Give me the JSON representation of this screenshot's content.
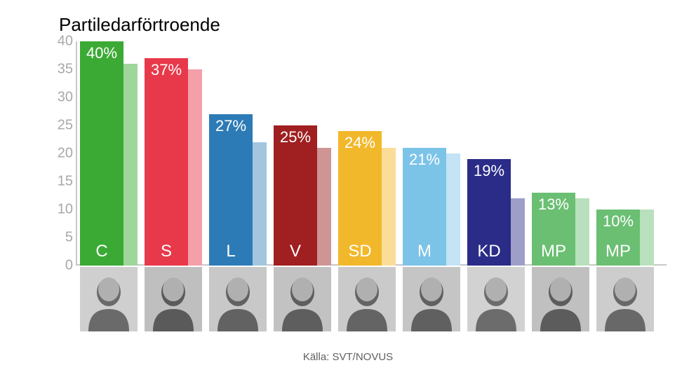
{
  "chart": {
    "type": "bar",
    "title": "Partiledarförtroende",
    "title_fontsize": 26,
    "title_color": "#000000",
    "background_color": "#ffffff",
    "axis_color": "#c8c8c8",
    "ylim": [
      0,
      40
    ],
    "ytick_step": 5,
    "yticks": [
      0,
      5,
      10,
      15,
      20,
      25,
      30,
      35,
      40
    ],
    "ytick_color": "#a8a8a8",
    "ytick_fontsize": 20,
    "value_label_color": "#ffffff",
    "value_label_fontsize": 22,
    "party_label_color": "#ffffff",
    "party_label_fontsize": 24,
    "bar_group_width": 82,
    "bar_main_width": 62,
    "bar_secondary_width": 20,
    "bar_gap": 10,
    "parties": [
      {
        "code": "C",
        "value": 40,
        "value_label": "40%",
        "secondary_value": 36,
        "main_color": "#3baa35",
        "secondary_color": "#9fd69b"
      },
      {
        "code": "S",
        "value": 37,
        "value_label": "37%",
        "secondary_value": 35,
        "main_color": "#e8394b",
        "secondary_color": "#f3a0aa"
      },
      {
        "code": "L",
        "value": 27,
        "value_label": "27%",
        "secondary_value": 22,
        "main_color": "#2c7bb6",
        "secondary_color": "#a3c6de"
      },
      {
        "code": "V",
        "value": 25,
        "value_label": "25%",
        "secondary_value": 21,
        "main_color": "#a01f20",
        "secondary_color": "#cf9494"
      },
      {
        "code": "SD",
        "value": 24,
        "value_label": "24%",
        "secondary_value": 21,
        "main_color": "#f2b82b",
        "secondary_color": "#f9dd99"
      },
      {
        "code": "M",
        "value": 21,
        "value_label": "21%",
        "secondary_value": 20,
        "main_color": "#7cc3e8",
        "secondary_color": "#c4e3f4"
      },
      {
        "code": "KD",
        "value": 19,
        "value_label": "19%",
        "secondary_value": 12,
        "main_color": "#2a2c88",
        "secondary_color": "#9e9fc8"
      },
      {
        "code": "MP",
        "value": 13,
        "value_label": "13%",
        "secondary_value": 12,
        "main_color": "#6bbf73",
        "secondary_color": "#b8e0bc"
      },
      {
        "code": "MP",
        "value": 10,
        "value_label": "10%",
        "secondary_value": 10,
        "main_color": "#6bbf73",
        "secondary_color": "#b8e0bc"
      }
    ]
  },
  "source": "Källa: SVT/NOVUS",
  "source_fontsize": 15,
  "source_color": "#606060"
}
